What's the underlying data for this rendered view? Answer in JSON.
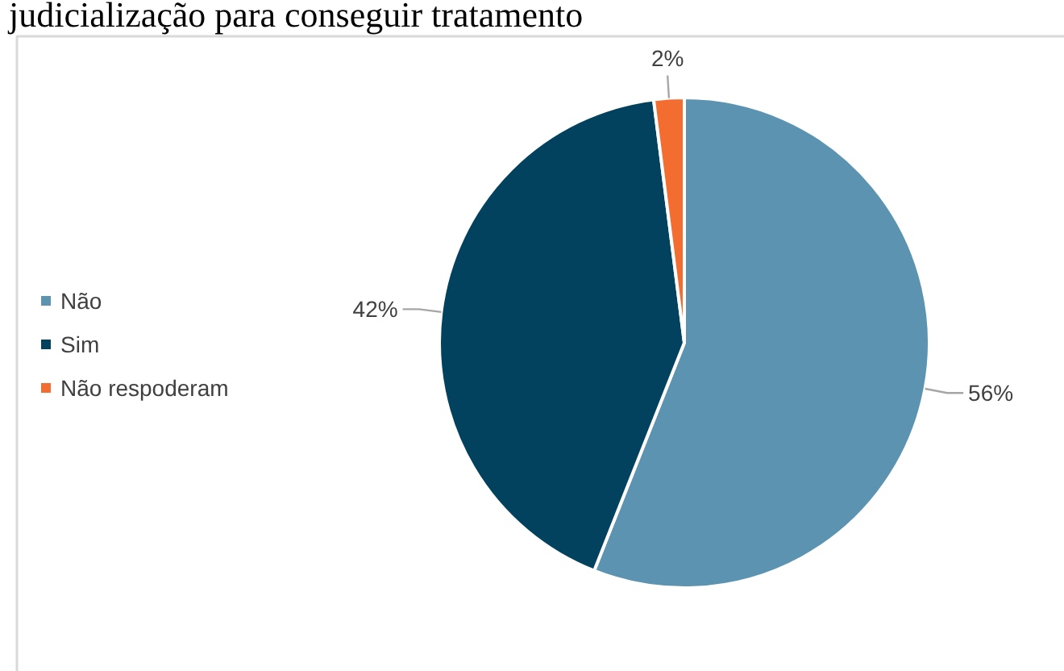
{
  "chart_data": {
    "type": "pie",
    "title": "judicialização para conseguir tratamento",
    "categories": [
      "Não",
      "Sim",
      "Não respoderam"
    ],
    "values": [
      56,
      42,
      2
    ],
    "colors": [
      "#5b93b1",
      "#03425f",
      "#f26d2f"
    ],
    "value_labels": [
      "56%",
      "42%",
      "2%"
    ],
    "legend": "left"
  }
}
